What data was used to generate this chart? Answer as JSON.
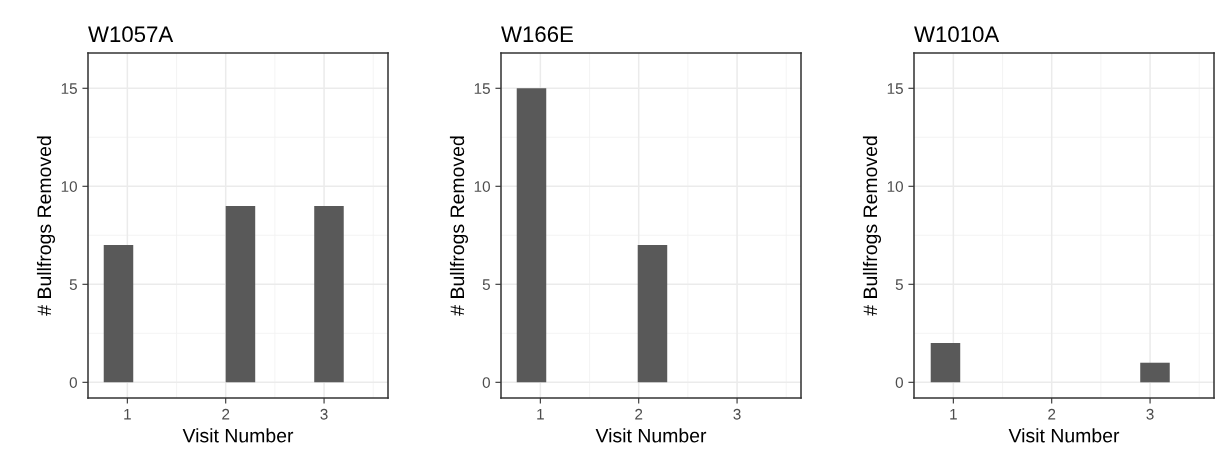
{
  "chart_data": [
    {
      "type": "bar",
      "title": "W1057A",
      "xlabel": "Visit Number",
      "ylabel": "# Bullfrogs Removed",
      "x": [
        0.91,
        2.15,
        3.05
      ],
      "values": [
        7,
        9,
        9
      ],
      "color": "#595959",
      "xlim": [
        0.6,
        3.65
      ],
      "xticks": [
        1,
        2,
        3
      ],
      "ylim": [
        -0.8,
        16.8
      ],
      "yticks": [
        0,
        5,
        10,
        15
      ],
      "grid": true
    },
    {
      "type": "bar",
      "title": "W166E",
      "xlabel": "Visit Number",
      "ylabel": "# Bullfrogs Removed",
      "x": [
        0.91,
        2.14
      ],
      "values": [
        15,
        7
      ],
      "color": "#595959",
      "xlim": [
        0.6,
        3.65
      ],
      "xticks": [
        1,
        2,
        3
      ],
      "ylim": [
        -0.8,
        16.8
      ],
      "yticks": [
        0,
        5,
        10,
        15
      ],
      "grid": true
    },
    {
      "type": "bar",
      "title": "W1010A",
      "xlabel": "Visit Number",
      "ylabel": "# Bullfrogs Removed",
      "x": [
        0.92,
        3.05
      ],
      "values": [
        2,
        1
      ],
      "color": "#595959",
      "xlim": [
        0.6,
        3.65
      ],
      "xticks": [
        1,
        2,
        3
      ],
      "ylim": [
        -0.8,
        16.8
      ],
      "yticks": [
        0,
        5,
        10,
        15
      ],
      "grid": true
    }
  ]
}
